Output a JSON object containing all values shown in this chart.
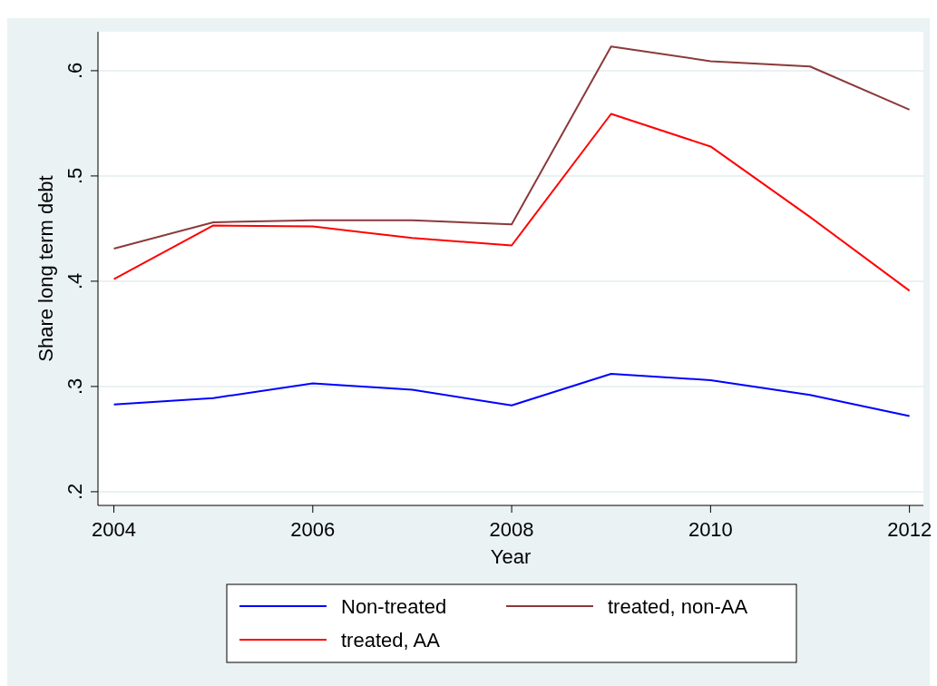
{
  "chart_data": {
    "type": "line",
    "xlabel": "Year",
    "ylabel": "Share long term debt",
    "x": [
      2004,
      2005,
      2006,
      2007,
      2008,
      2009,
      2010,
      2011,
      2012
    ],
    "series": [
      {
        "name": "Non-treated",
        "color": "#0000ff",
        "values": [
          0.283,
          0.289,
          0.303,
          0.297,
          0.282,
          0.312,
          0.306,
          0.292,
          0.272
        ]
      },
      {
        "name": "treated, non-AA",
        "color": "#8b3a3a",
        "values": [
          0.431,
          0.456,
          0.458,
          0.458,
          0.454,
          0.623,
          0.609,
          0.604,
          0.563
        ]
      },
      {
        "name": "treated, AA",
        "color": "#ff0000",
        "values": [
          0.402,
          0.453,
          0.452,
          0.441,
          0.434,
          0.559,
          0.528,
          0.461,
          0.391
        ]
      }
    ],
    "xlim": [
      2003.84,
      2012.14
    ],
    "xticks": [
      2004,
      2006,
      2008,
      2010,
      2012
    ],
    "ylim": [
      0.187,
      0.637
    ],
    "yticks": [
      {
        "value": 0.2,
        "label": ".2"
      },
      {
        "value": 0.3,
        "label": ".3"
      },
      {
        "value": 0.4,
        "label": ".4"
      },
      {
        "value": 0.5,
        "label": ".5"
      },
      {
        "value": 0.6,
        "label": ".6"
      }
    ],
    "grid": "y",
    "legend": "bottom",
    "marker": "none",
    "line_style": "solid"
  }
}
